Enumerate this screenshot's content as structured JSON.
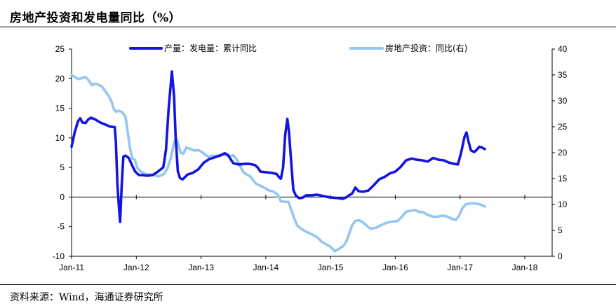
{
  "title": "房地产投资和发电量同比（%）",
  "source": "资料来源：Wind，海通证券研究所",
  "chart_data": {
    "type": "line",
    "title": "房地产投资和发电量同比（%）",
    "x_labels": [
      "Jan-11",
      "Jan-12",
      "Jan-13",
      "Jan-14",
      "Jan-15",
      "Jan-16",
      "Jan-17",
      "Jan-18"
    ],
    "y_left": {
      "min": -10,
      "max": 25,
      "step": 5,
      "ticks": [
        "-10",
        "-5",
        "0",
        "5",
        "10",
        "15",
        "20",
        "25"
      ]
    },
    "y_right": {
      "min": 0,
      "max": 40,
      "step": 5,
      "ticks": [
        "0",
        "5",
        "10",
        "15",
        "20",
        "25",
        "30",
        "35",
        "40"
      ]
    },
    "legend_position": "top",
    "colors": {
      "power": "#1414e0",
      "invest": "#94c6f2"
    },
    "series": [
      {
        "name": "产量：发电量：累计同比",
        "axis": "left",
        "color": "#1414e0",
        "points": [
          [
            0,
            8.5
          ],
          [
            0.6,
            11
          ],
          [
            1.2,
            12.8
          ],
          [
            1.6,
            13.3
          ],
          [
            2.0,
            12.6
          ],
          [
            2.6,
            12.5
          ],
          [
            3.1,
            13.1
          ],
          [
            3.6,
            13.4
          ],
          [
            4.4,
            13.1
          ],
          [
            5.3,
            12.6
          ],
          [
            6.4,
            12.2
          ],
          [
            7.1,
            11.9
          ],
          [
            8.0,
            11.8
          ],
          [
            8.2,
            9.5
          ],
          [
            8.5,
            2
          ],
          [
            8.8,
            -2
          ],
          [
            9.0,
            -4.2
          ],
          [
            9.3,
            2
          ],
          [
            9.6,
            6.8
          ],
          [
            10.0,
            7.0
          ],
          [
            10.6,
            6.6
          ],
          [
            11.2,
            5.4
          ],
          [
            11.8,
            4.3
          ],
          [
            12.5,
            3.7
          ],
          [
            13.2,
            3.7
          ],
          [
            14.0,
            3.6
          ],
          [
            15.0,
            3.7
          ],
          [
            16.0,
            4.3
          ],
          [
            17.0,
            5.0
          ],
          [
            17.5,
            8
          ],
          [
            18.0,
            15
          ],
          [
            18.6,
            21.2
          ],
          [
            19.0,
            17
          ],
          [
            19.3,
            10
          ],
          [
            19.7,
            4.3
          ],
          [
            20.1,
            3.2
          ],
          [
            20.6,
            3.0
          ],
          [
            21.5,
            3.8
          ],
          [
            22.5,
            4.1
          ],
          [
            23.5,
            4.7
          ],
          [
            24.5,
            5.8
          ],
          [
            25.5,
            6.4
          ],
          [
            26.5,
            6.7
          ],
          [
            27.5,
            7.0
          ],
          [
            28.4,
            7.4
          ],
          [
            29.0,
            7.1
          ],
          [
            29.4,
            6.5
          ],
          [
            30.0,
            5.7
          ],
          [
            31.0,
            5.5
          ],
          [
            32.0,
            5.6
          ],
          [
            33.0,
            5.6
          ],
          [
            34.0,
            5.4
          ],
          [
            34.5,
            5.0
          ],
          [
            35.0,
            4.3
          ],
          [
            36.0,
            4.2
          ],
          [
            37.0,
            4.1
          ],
          [
            38.0,
            3.9
          ],
          [
            38.5,
            3.3
          ],
          [
            38.8,
            3.1
          ],
          [
            39.2,
            5
          ],
          [
            39.6,
            10.5
          ],
          [
            40.0,
            13.2
          ],
          [
            40.3,
            11
          ],
          [
            40.7,
            6
          ],
          [
            41.1,
            1.2
          ],
          [
            41.6,
            0.2
          ],
          [
            42.2,
            -0.2
          ],
          [
            42.8,
            -0.1
          ],
          [
            43.5,
            0.3
          ],
          [
            44.5,
            0.3
          ],
          [
            45.5,
            0.4
          ],
          [
            46.5,
            0.2
          ],
          [
            47.5,
            0.0
          ],
          [
            48.5,
            -0.1
          ],
          [
            49.5,
            -0.2
          ],
          [
            50.2,
            -0.3
          ],
          [
            50.8,
            -0.1
          ],
          [
            51.4,
            0.3
          ],
          [
            52.0,
            0.6
          ],
          [
            52.6,
            1.6
          ],
          [
            53.2,
            1.0
          ],
          [
            54.0,
            0.9
          ],
          [
            55.0,
            1.1
          ],
          [
            56.0,
            2.0
          ],
          [
            57.0,
            3.0
          ],
          [
            58.0,
            3.4
          ],
          [
            59.0,
            4.0
          ],
          [
            60.0,
            4.3
          ],
          [
            61.0,
            5.1
          ],
          [
            62.0,
            6.2
          ],
          [
            63.0,
            6.5
          ],
          [
            64.0,
            6.3
          ],
          [
            65.0,
            6.2
          ],
          [
            66.0,
            6.0
          ],
          [
            67.0,
            6.6
          ],
          [
            68.0,
            6.3
          ],
          [
            69.0,
            6.2
          ],
          [
            70.0,
            5.8
          ],
          [
            71.0,
            5.6
          ],
          [
            71.6,
            5.5
          ],
          [
            72.2,
            7.5
          ],
          [
            72.8,
            10.1
          ],
          [
            73.2,
            10.9
          ],
          [
            73.6,
            9.3
          ],
          [
            74.0,
            7.9
          ],
          [
            74.6,
            7.6
          ],
          [
            75.0,
            7.9
          ],
          [
            75.6,
            8.5
          ],
          [
            76.2,
            8.3
          ],
          [
            76.6,
            8.1
          ]
        ]
      },
      {
        "name": "房地产投资：同比(右)",
        "axis": "right",
        "color": "#94c6f2",
        "points": [
          [
            0,
            35.0
          ],
          [
            0.6,
            34.6
          ],
          [
            1.2,
            34.2
          ],
          [
            2.0,
            34.4
          ],
          [
            2.6,
            34.6
          ],
          [
            3.2,
            33.9
          ],
          [
            3.8,
            33.0
          ],
          [
            4.4,
            33.3
          ],
          [
            5.0,
            33.1
          ],
          [
            5.6,
            32.8
          ],
          [
            6.2,
            31.9
          ],
          [
            6.8,
            31.1
          ],
          [
            7.4,
            29.9
          ],
          [
            7.8,
            28.5
          ],
          [
            8.2,
            27.9
          ],
          [
            8.8,
            28.1
          ],
          [
            9.4,
            27.8
          ],
          [
            10.0,
            26.9
          ],
          [
            10.4,
            24.0
          ],
          [
            10.8,
            21.0
          ],
          [
            11.3,
            18.8
          ],
          [
            11.7,
            18.7
          ],
          [
            12.2,
            17.0
          ],
          [
            12.8,
            16.4
          ],
          [
            13.6,
            15.9
          ],
          [
            14.5,
            15.8
          ],
          [
            15.3,
            15.7
          ],
          [
            16.0,
            15.4
          ],
          [
            16.6,
            15.6
          ],
          [
            17.2,
            16.0
          ],
          [
            17.8,
            17.0
          ],
          [
            18.4,
            19.0
          ],
          [
            19.0,
            21.9
          ],
          [
            19.4,
            22.8
          ],
          [
            19.8,
            21.5
          ],
          [
            20.2,
            20.0
          ],
          [
            20.7,
            19.8
          ],
          [
            21.3,
            21.0
          ],
          [
            22.0,
            20.7
          ],
          [
            22.8,
            20.4
          ],
          [
            23.5,
            20.5
          ],
          [
            24.2,
            20.1
          ],
          [
            24.8,
            19.6
          ],
          [
            25.4,
            19.2
          ],
          [
            26.0,
            19.4
          ],
          [
            26.8,
            19.4
          ],
          [
            27.6,
            19.5
          ],
          [
            28.4,
            19.6
          ],
          [
            29.2,
            19.3
          ],
          [
            30.0,
            19.5
          ],
          [
            30.6,
            18.7
          ],
          [
            31.2,
            17.5
          ],
          [
            31.8,
            16.3
          ],
          [
            32.4,
            15.8
          ],
          [
            33.0,
            15.5
          ],
          [
            33.6,
            14.8
          ],
          [
            34.2,
            14.0
          ],
          [
            35.0,
            13.6
          ],
          [
            35.8,
            13.2
          ],
          [
            36.6,
            12.7
          ],
          [
            37.4,
            12.5
          ],
          [
            38.2,
            11.9
          ],
          [
            38.8,
            10.6
          ],
          [
            39.6,
            10.5
          ],
          [
            40.2,
            10.5
          ],
          [
            40.6,
            9.3
          ],
          [
            41.2,
            7.5
          ],
          [
            41.8,
            6.0
          ],
          [
            42.4,
            5.4
          ],
          [
            43.2,
            4.9
          ],
          [
            44.0,
            4.5
          ],
          [
            44.8,
            4.1
          ],
          [
            45.6,
            3.6
          ],
          [
            46.4,
            2.8
          ],
          [
            47.2,
            2.3
          ],
          [
            47.8,
            2.0
          ],
          [
            48.4,
            1.4
          ],
          [
            48.8,
            1.0
          ],
          [
            49.2,
            1.2
          ],
          [
            49.8,
            1.6
          ],
          [
            50.4,
            2.0
          ],
          [
            51.0,
            3.0
          ],
          [
            51.6,
            4.8
          ],
          [
            52.0,
            6.0
          ],
          [
            52.6,
            6.8
          ],
          [
            53.2,
            7.0
          ],
          [
            53.8,
            6.7
          ],
          [
            54.4,
            6.2
          ],
          [
            55.0,
            5.6
          ],
          [
            55.6,
            5.3
          ],
          [
            56.4,
            5.5
          ],
          [
            57.2,
            5.9
          ],
          [
            58.0,
            6.3
          ],
          [
            58.8,
            6.6
          ],
          [
            59.6,
            6.7
          ],
          [
            60.4,
            6.8
          ],
          [
            61.2,
            7.6
          ],
          [
            62.0,
            8.6
          ],
          [
            62.8,
            8.8
          ],
          [
            63.6,
            8.9
          ],
          [
            64.4,
            8.6
          ],
          [
            65.2,
            8.5
          ],
          [
            66.0,
            8.0
          ],
          [
            66.8,
            7.7
          ],
          [
            67.6,
            7.6
          ],
          [
            68.4,
            7.8
          ],
          [
            69.2,
            7.8
          ],
          [
            70.0,
            7.5
          ],
          [
            70.6,
            7.2
          ],
          [
            71.2,
            7.0
          ],
          [
            71.8,
            7.8
          ],
          [
            72.4,
            9.2
          ],
          [
            73.0,
            10.0
          ],
          [
            73.8,
            10.2
          ],
          [
            74.6,
            10.2
          ],
          [
            75.4,
            10.1
          ],
          [
            76.0,
            9.9
          ],
          [
            76.6,
            9.6
          ]
        ]
      }
    ]
  }
}
